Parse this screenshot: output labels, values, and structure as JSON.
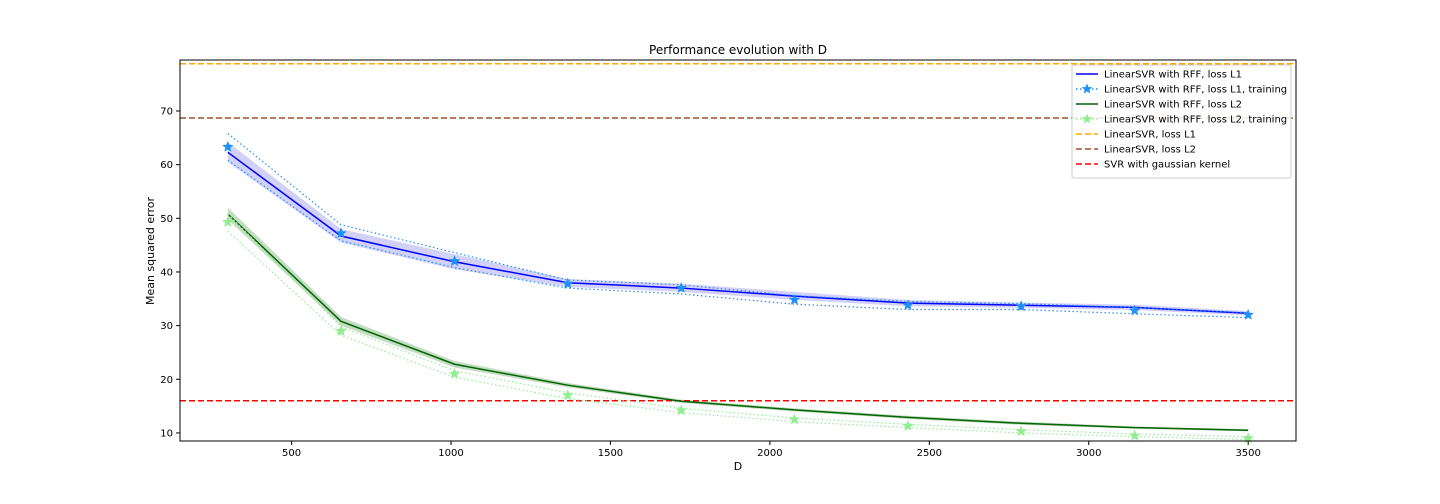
{
  "chart_data": {
    "type": "line",
    "title": "Performance evolution with D",
    "xlabel": "D",
    "ylabel": "Mean squared error",
    "xlim": [
      150,
      3650
    ],
    "ylim": [
      8.5,
      79.5
    ],
    "xticks": [
      500,
      1000,
      1500,
      2000,
      2500,
      3000,
      3500
    ],
    "yticks": [
      10,
      20,
      30,
      40,
      50,
      60,
      70
    ],
    "grid": false,
    "legend_position": "top-right",
    "x": [
      300,
      655,
      1011,
      1366,
      1722,
      2077,
      2433,
      2788,
      3144,
      3500
    ],
    "series": [
      {
        "name": "LinearSVR with RFF, loss L1",
        "color": "#0000ff",
        "style": "solid",
        "values": [
          62.3,
          46.7,
          41.9,
          38.0,
          37.0,
          35.5,
          34.2,
          33.8,
          33.4,
          32.3
        ],
        "band_low": [
          60.5,
          45.5,
          40.5,
          37.2,
          36.3,
          34.8,
          33.6,
          33.3,
          32.9,
          31.9
        ],
        "band_high": [
          64.2,
          48.0,
          43.3,
          38.7,
          37.8,
          36.3,
          34.8,
          34.3,
          33.9,
          32.7
        ],
        "band_color": "#6666ee"
      },
      {
        "name": "LinearSVR with RFF, loss L1, training",
        "color": "#1e90ff",
        "style": "dotted",
        "marker": "star",
        "values": [
          63.3,
          47.2,
          42.0,
          37.8,
          37.0,
          34.8,
          33.8,
          33.6,
          32.8,
          32.0
        ],
        "band_low": [
          60.8,
          45.8,
          40.8,
          37.0,
          35.9,
          34.0,
          33.0,
          33.0,
          32.2,
          31.5
        ],
        "band_high": [
          65.8,
          48.8,
          43.6,
          38.5,
          37.6,
          35.6,
          34.5,
          34.1,
          33.4,
          32.4
        ]
      },
      {
        "name": "LinearSVR with RFF, loss L2",
        "color": "#006400",
        "style": "solid",
        "values": [
          50.8,
          30.8,
          22.8,
          18.9,
          15.9,
          14.3,
          12.9,
          11.8,
          11.0,
          10.5
        ],
        "band_low": [
          49.8,
          30.0,
          22.2,
          18.5,
          15.6,
          14.0,
          12.6,
          11.5,
          10.8,
          10.3
        ],
        "band_high": [
          52.0,
          31.6,
          23.4,
          19.3,
          16.2,
          14.6,
          13.2,
          12.1,
          11.2,
          10.7
        ],
        "band_color": "#3a8a3a"
      },
      {
        "name": "LinearSVR with RFF, loss L2, training",
        "color": "#90ee90",
        "style": "dotted",
        "marker": "star",
        "values": [
          49.3,
          29.0,
          21.0,
          17.0,
          14.2,
          12.5,
          11.3,
          10.3,
          9.5,
          9.0
        ],
        "band_low": [
          47.6,
          28.2,
          20.4,
          16.4,
          13.8,
          12.1,
          11.0,
          10.0,
          9.3,
          8.8
        ],
        "band_high": [
          50.8,
          29.8,
          21.6,
          17.5,
          14.6,
          12.8,
          11.6,
          10.6,
          9.8,
          9.3
        ]
      }
    ],
    "hlines": [
      {
        "name": "LinearSVR, loss L1",
        "y": 78.8,
        "color": "#ffa500",
        "style": "dashed"
      },
      {
        "name": "LinearSVR, loss L2",
        "y": 68.7,
        "color": "#a0522d",
        "style": "dashed"
      },
      {
        "name": "SVR with gaussian kernel",
        "y": 16.0,
        "color": "#ff0000",
        "style": "dashed"
      }
    ]
  }
}
